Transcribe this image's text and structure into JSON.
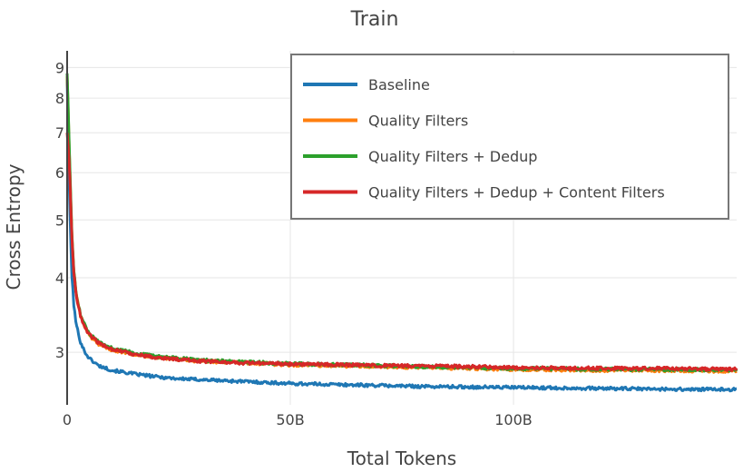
{
  "chart_data": {
    "type": "line",
    "title": "Train",
    "xlabel": "Total Tokens",
    "ylabel": "Cross Entropy",
    "x_unit": "tokens",
    "xlim": [
      0,
      150000000000
    ],
    "ylim": [
      2.45,
      9.6
    ],
    "y_scale": "log",
    "grid": true,
    "legend_position": "top-right",
    "x_ticks": [
      {
        "value": 0,
        "label": "0"
      },
      {
        "value": 50000000000,
        "label": "50B"
      },
      {
        "value": 100000000000,
        "label": "100B"
      }
    ],
    "y_ticks": [
      {
        "value": 3,
        "label": "3"
      },
      {
        "value": 4,
        "label": "4"
      },
      {
        "value": 5,
        "label": "5"
      },
      {
        "value": 6,
        "label": "6"
      },
      {
        "value": 7,
        "label": "7"
      },
      {
        "value": 8,
        "label": "8"
      },
      {
        "value": 9,
        "label": "9"
      }
    ],
    "series": [
      {
        "name": "Baseline",
        "color": "#1f77b4",
        "x": [
          0,
          500000000,
          1000000000,
          1500000000,
          2000000000,
          3000000000,
          4000000000,
          5000000000,
          7000000000,
          10000000000,
          15000000000,
          20000000000,
          25000000000,
          30000000000,
          40000000000,
          50000000000,
          60000000000,
          70000000000,
          80000000000,
          90000000000,
          100000000000,
          110000000000,
          120000000000,
          130000000000,
          140000000000,
          150000000000
        ],
        "y": [
          8.6,
          5.5,
          4.1,
          3.6,
          3.35,
          3.12,
          3.0,
          2.93,
          2.85,
          2.8,
          2.76,
          2.73,
          2.71,
          2.7,
          2.68,
          2.66,
          2.65,
          2.64,
          2.63,
          2.625,
          2.62,
          2.615,
          2.61,
          2.605,
          2.6,
          2.6
        ]
      },
      {
        "name": "Quality Filters",
        "color": "#ff7f0e",
        "x": [
          0,
          500000000,
          1000000000,
          1500000000,
          2000000000,
          3000000000,
          4000000000,
          5000000000,
          7000000000,
          10000000000,
          15000000000,
          20000000000,
          25000000000,
          30000000000,
          40000000000,
          50000000000,
          60000000000,
          70000000000,
          80000000000,
          90000000000,
          100000000000,
          110000000000,
          120000000000,
          130000000000,
          140000000000,
          150000000000
        ],
        "y": [
          8.7,
          6.4,
          4.8,
          4.1,
          3.75,
          3.45,
          3.3,
          3.2,
          3.1,
          3.03,
          2.98,
          2.94,
          2.92,
          2.9,
          2.88,
          2.86,
          2.85,
          2.84,
          2.83,
          2.82,
          2.81,
          2.805,
          2.8,
          2.8,
          2.795,
          2.79
        ]
      },
      {
        "name": "Quality Filters + Dedup",
        "color": "#2ca02c",
        "x": [
          0,
          500000000,
          1000000000,
          1500000000,
          2000000000,
          3000000000,
          4000000000,
          5000000000,
          7000000000,
          10000000000,
          15000000000,
          20000000000,
          25000000000,
          30000000000,
          40000000000,
          50000000000,
          60000000000,
          70000000000,
          80000000000,
          90000000000,
          100000000000,
          110000000000,
          120000000000,
          130000000000,
          140000000000,
          150000000000
        ],
        "y": [
          8.8,
          6.5,
          4.85,
          4.12,
          3.77,
          3.47,
          3.32,
          3.22,
          3.12,
          3.05,
          2.99,
          2.95,
          2.93,
          2.91,
          2.89,
          2.87,
          2.86,
          2.85,
          2.84,
          2.83,
          2.82,
          2.815,
          2.81,
          2.81,
          2.805,
          2.8
        ]
      },
      {
        "name": "Quality Filters + Dedup + Content Filters",
        "color": "#d62728",
        "x": [
          0,
          500000000,
          1000000000,
          1500000000,
          2000000000,
          3000000000,
          4000000000,
          5000000000,
          7000000000,
          10000000000,
          15000000000,
          20000000000,
          25000000000,
          30000000000,
          40000000000,
          50000000000,
          60000000000,
          70000000000,
          80000000000,
          90000000000,
          100000000000,
          110000000000,
          120000000000,
          130000000000,
          140000000000,
          150000000000
        ],
        "y": [
          7.0,
          6.2,
          4.75,
          4.08,
          3.74,
          3.45,
          3.3,
          3.21,
          3.11,
          3.04,
          2.98,
          2.94,
          2.92,
          2.9,
          2.88,
          2.87,
          2.86,
          2.85,
          2.845,
          2.84,
          2.83,
          2.825,
          2.82,
          2.82,
          2.815,
          2.81
        ]
      }
    ]
  }
}
